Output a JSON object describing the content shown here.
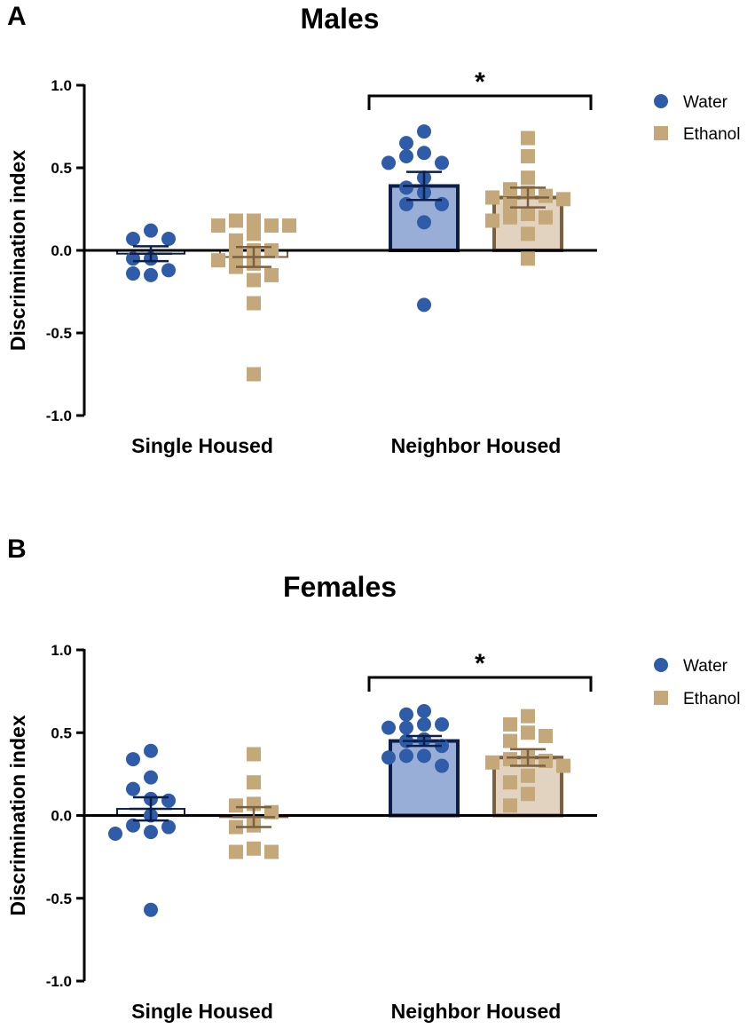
{
  "colors": {
    "water_point": "#2f5ca8",
    "water_bar_fill": "#98aed6",
    "water_bar_edge": "#0c1e4a",
    "ethanol_point": "#c4a87a",
    "ethanol_bar_fill": "#e1d3bf",
    "ethanol_bar_edge": "#7a6040",
    "axis": "#000000"
  },
  "chart_data": [
    {
      "panel_letter": "A",
      "type": "bar",
      "title": "Males",
      "ylabel": "Discrimination index",
      "xlabel": "",
      "ylim": [
        -1.0,
        1.0
      ],
      "yticks": [
        1.0,
        0.5,
        0.0,
        -0.5,
        -1.0
      ],
      "ytick_labels": [
        "1.0",
        "0.5",
        "0.0",
        "-0.5",
        "-1.0"
      ],
      "categories": [
        "Single Housed",
        "Neighbor Housed"
      ],
      "legend": [
        "Water",
        "Ethanol"
      ],
      "legend_position": "top-right",
      "significance": {
        "between": "Neighbor Housed",
        "label": "*"
      },
      "series": [
        {
          "name": "Water",
          "marker": "circle",
          "means": [
            -0.02,
            0.39
          ],
          "sem": [
            0.045,
            0.085
          ],
          "points": [
            [
              0.12,
              0.07,
              0.07,
              -0.05,
              -0.05,
              -0.12,
              -0.15,
              -0.14
            ],
            [
              0.72,
              0.65,
              0.59,
              0.57,
              0.53,
              0.53,
              0.44,
              0.38,
              0.35,
              0.28,
              0.28,
              0.17,
              -0.33
            ]
          ]
        },
        {
          "name": "Ethanol",
          "marker": "square",
          "means": [
            -0.04,
            0.32
          ],
          "sem": [
            0.06,
            0.06
          ],
          "points": [
            [
              0.18,
              0.18,
              0.15,
              0.15,
              0.15,
              0.1,
              0.06,
              0.0,
              0.0,
              -0.02,
              -0.06,
              -0.08,
              -0.1,
              -0.15,
              -0.18,
              -0.32,
              -0.75
            ],
            [
              0.68,
              0.57,
              0.44,
              0.37,
              0.35,
              0.33,
              0.32,
              0.31,
              0.28,
              0.22,
              0.2,
              0.2,
              0.18,
              0.1,
              -0.05
            ]
          ]
        }
      ]
    },
    {
      "panel_letter": "B",
      "type": "bar",
      "title": "Females",
      "ylabel": "Discrimination index",
      "xlabel": "",
      "ylim": [
        -1.0,
        1.0
      ],
      "yticks": [
        1.0,
        0.5,
        0.0,
        -0.5,
        -1.0
      ],
      "ytick_labels": [
        "1.0",
        "0.5",
        "0.0",
        "-0.5",
        "-1.0"
      ],
      "categories": [
        "Single Housed",
        "Neighbor Housed"
      ],
      "legend": [
        "Water",
        "Ethanol"
      ],
      "legend_position": "top-right",
      "significance": {
        "between": "Neighbor Housed",
        "label": "*"
      },
      "series": [
        {
          "name": "Water",
          "marker": "circle",
          "means": [
            0.04,
            0.45
          ],
          "sem": [
            0.07,
            0.03
          ],
          "points": [
            [
              0.39,
              0.34,
              0.23,
              0.16,
              0.1,
              0.09,
              0.0,
              -0.06,
              -0.07,
              -0.1,
              -0.11,
              -0.57
            ],
            [
              0.63,
              0.61,
              0.55,
              0.55,
              0.53,
              0.53,
              0.46,
              0.45,
              0.42,
              0.36,
              0.36,
              0.35,
              0.3
            ]
          ]
        },
        {
          "name": "Ethanol",
          "marker": "square",
          "means": [
            -0.01,
            0.35
          ],
          "sem": [
            0.06,
            0.05
          ],
          "points": [
            [
              0.37,
              0.2,
              0.07,
              0.06,
              0.02,
              -0.06,
              -0.07,
              -0.2,
              -0.22,
              -0.22
            ],
            [
              0.6,
              0.55,
              0.5,
              0.48,
              0.45,
              0.35,
              0.34,
              0.33,
              0.32,
              0.3,
              0.24,
              0.2,
              0.13,
              0.06
            ]
          ]
        }
      ]
    }
  ]
}
